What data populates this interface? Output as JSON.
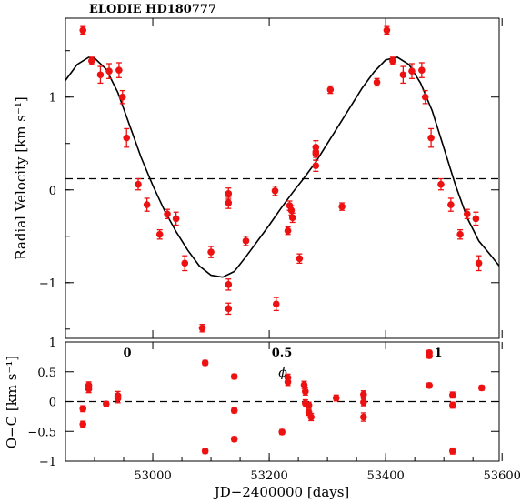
{
  "chart_data": [
    {
      "type": "scatter",
      "title": "ELODIE HD180777",
      "ylabel": "Radial Velocity [km s⁻¹]",
      "ylim": [
        -1.6,
        1.85
      ],
      "yticks": [
        -1,
        0,
        1
      ],
      "top_axis": {
        "label": "ϕ",
        "ticks": [
          "0",
          "0.5",
          "1"
        ]
      },
      "offset_line": 0.12,
      "model_curve": {
        "style": "solid",
        "x": [
          52850,
          52870,
          52890,
          52900,
          52920,
          52940,
          52960,
          52980,
          53000,
          53020,
          53040,
          53060,
          53080,
          53100,
          53120,
          53140,
          53160,
          53180,
          53200,
          53220,
          53240,
          53260,
          53280,
          53300,
          53320,
          53340,
          53360,
          53380,
          53400,
          53420,
          53440,
          53460,
          53480,
          53500,
          53520,
          53540,
          53560,
          53580,
          53595
        ],
        "y": [
          1.18,
          1.35,
          1.43,
          1.42,
          1.3,
          1.05,
          0.7,
          0.35,
          0.05,
          -0.22,
          -0.45,
          -0.65,
          -0.82,
          -0.92,
          -0.94,
          -0.88,
          -0.72,
          -0.55,
          -0.38,
          -0.2,
          -0.03,
          0.13,
          0.3,
          0.5,
          0.7,
          0.9,
          1.1,
          1.27,
          1.4,
          1.43,
          1.35,
          1.15,
          0.85,
          0.45,
          0.05,
          -0.3,
          -0.55,
          -0.7,
          -0.82
        ]
      },
      "series": [
        {
          "color": "#ee1111",
          "points": [
            {
              "x": 52880,
              "y": 1.72,
              "err": 0.04
            },
            {
              "x": 52895,
              "y": 1.39,
              "err": 0.04
            },
            {
              "x": 52910,
              "y": 1.24,
              "err": 0.09
            },
            {
              "x": 52925,
              "y": 1.28,
              "err": 0.08
            },
            {
              "x": 52942,
              "y": 1.29,
              "err": 0.08
            },
            {
              "x": 52948,
              "y": 1.0,
              "err": 0.07
            },
            {
              "x": 52955,
              "y": 0.56,
              "err": 0.1
            },
            {
              "x": 52975,
              "y": 0.06,
              "err": 0.06
            },
            {
              "x": 52990,
              "y": -0.16,
              "err": 0.07
            },
            {
              "x": 53012,
              "y": -0.48,
              "err": 0.05
            },
            {
              "x": 53025,
              "y": -0.26,
              "err": 0.05
            },
            {
              "x": 53040,
              "y": -0.31,
              "err": 0.07
            },
            {
              "x": 53055,
              "y": -0.79,
              "err": 0.08
            },
            {
              "x": 53085,
              "y": -1.49,
              "err": 0.04
            },
            {
              "x": 53100,
              "y": -0.67,
              "err": 0.06
            },
            {
              "x": 53130,
              "y": -0.04,
              "err": 0.06
            },
            {
              "x": 53130,
              "y": -0.14,
              "err": 0.06
            },
            {
              "x": 53130,
              "y": -1.02,
              "err": 0.06
            },
            {
              "x": 53130,
              "y": -1.28,
              "err": 0.06
            },
            {
              "x": 53160,
              "y": -0.55,
              "err": 0.05
            },
            {
              "x": 53210,
              "y": -0.01,
              "err": 0.05
            },
            {
              "x": 53212,
              "y": -1.23,
              "err": 0.07
            },
            {
              "x": 53232,
              "y": -0.44,
              "err": 0.04
            },
            {
              "x": 53235,
              "y": -0.17,
              "err": 0.05
            },
            {
              "x": 53238,
              "y": -0.22,
              "err": 0.05
            },
            {
              "x": 53240,
              "y": -0.3,
              "err": 0.05
            },
            {
              "x": 53252,
              "y": -0.74,
              "err": 0.05
            },
            {
              "x": 53280,
              "y": 0.46,
              "err": 0.07
            },
            {
              "x": 53280,
              "y": 0.39,
              "err": 0.07
            },
            {
              "x": 53280,
              "y": 0.26,
              "err": 0.06
            },
            {
              "x": 53280,
              "y": 0.41,
              "err": 0.06
            },
            {
              "x": 53305,
              "y": 1.08,
              "err": 0.04
            },
            {
              "x": 53325,
              "y": -0.18,
              "err": 0.04
            },
            {
              "x": 53385,
              "y": 1.16,
              "err": 0.04
            },
            {
              "x": 53402,
              "y": 1.72,
              "err": 0.04
            },
            {
              "x": 53412,
              "y": 1.39,
              "err": 0.04
            },
            {
              "x": 53430,
              "y": 1.24,
              "err": 0.09
            },
            {
              "x": 53445,
              "y": 1.28,
              "err": 0.08
            },
            {
              "x": 53462,
              "y": 1.29,
              "err": 0.08
            },
            {
              "x": 53468,
              "y": 1.0,
              "err": 0.07
            },
            {
              "x": 53478,
              "y": 0.56,
              "err": 0.1
            },
            {
              "x": 53495,
              "y": 0.06,
              "err": 0.06
            },
            {
              "x": 53512,
              "y": -0.16,
              "err": 0.07
            },
            {
              "x": 53528,
              "y": -0.48,
              "err": 0.05
            },
            {
              "x": 53540,
              "y": -0.26,
              "err": 0.05
            },
            {
              "x": 53555,
              "y": -0.31,
              "err": 0.07
            },
            {
              "x": 53560,
              "y": -0.79,
              "err": 0.08
            }
          ]
        }
      ]
    },
    {
      "type": "scatter",
      "xlabel": "JD−2400000 [days]",
      "ylabel": "O−C [km s⁻¹]",
      "xlim": [
        52850,
        53595
      ],
      "ylim": [
        -1.0,
        1.0
      ],
      "xticks": [
        53000,
        53200,
        53400,
        53600
      ],
      "yticks": [
        -1,
        -0.5,
        0,
        0.5,
        1
      ],
      "zero_line": 0,
      "series": [
        {
          "color": "#ee1111",
          "points": [
            {
              "x": 52880,
              "y": -0.12,
              "err": 0.05
            },
            {
              "x": 52880,
              "y": -0.38,
              "err": 0.05
            },
            {
              "x": 52890,
              "y": 0.21,
              "err": 0.06
            },
            {
              "x": 52890,
              "y": 0.27,
              "err": 0.06
            },
            {
              "x": 52920,
              "y": -0.04,
              "err": 0.04
            },
            {
              "x": 52940,
              "y": 0.1,
              "err": 0.07
            },
            {
              "x": 52940,
              "y": 0.05,
              "err": 0.07
            },
            {
              "x": 53090,
              "y": 0.65,
              "err": 0.04
            },
            {
              "x": 53090,
              "y": -0.83,
              "err": 0.04
            },
            {
              "x": 53140,
              "y": 0.42,
              "err": 0.04
            },
            {
              "x": 53140,
              "y": -0.15,
              "err": 0.04
            },
            {
              "x": 53140,
              "y": -0.63,
              "err": 0.04
            },
            {
              "x": 53232,
              "y": 0.4,
              "err": 0.06
            },
            {
              "x": 53232,
              "y": 0.33,
              "err": 0.06
            },
            {
              "x": 53222,
              "y": -0.51,
              "err": 0.04
            },
            {
              "x": 53260,
              "y": 0.28,
              "err": 0.06
            },
            {
              "x": 53262,
              "y": 0.17,
              "err": 0.06
            },
            {
              "x": 53262,
              "y": -0.03,
              "err": 0.06
            },
            {
              "x": 53268,
              "y": -0.06,
              "err": 0.05
            },
            {
              "x": 53268,
              "y": -0.18,
              "err": 0.05
            },
            {
              "x": 53272,
              "y": -0.26,
              "err": 0.06
            },
            {
              "x": 53315,
              "y": 0.06,
              "err": 0.05
            },
            {
              "x": 53362,
              "y": 0.12,
              "err": 0.06
            },
            {
              "x": 53362,
              "y": -0.01,
              "err": 0.06
            },
            {
              "x": 53362,
              "y": -0.26,
              "err": 0.07
            },
            {
              "x": 53475,
              "y": 0.82,
              "err": 0.04
            },
            {
              "x": 53475,
              "y": 0.77,
              "err": 0.04
            },
            {
              "x": 53475,
              "y": 0.27,
              "err": 0.04
            },
            {
              "x": 53515,
              "y": 0.11,
              "err": 0.05
            },
            {
              "x": 53515,
              "y": -0.06,
              "err": 0.05
            },
            {
              "x": 53515,
              "y": -0.83,
              "err": 0.05
            },
            {
              "x": 53565,
              "y": 0.23,
              "err": 0.04
            }
          ]
        }
      ]
    }
  ]
}
